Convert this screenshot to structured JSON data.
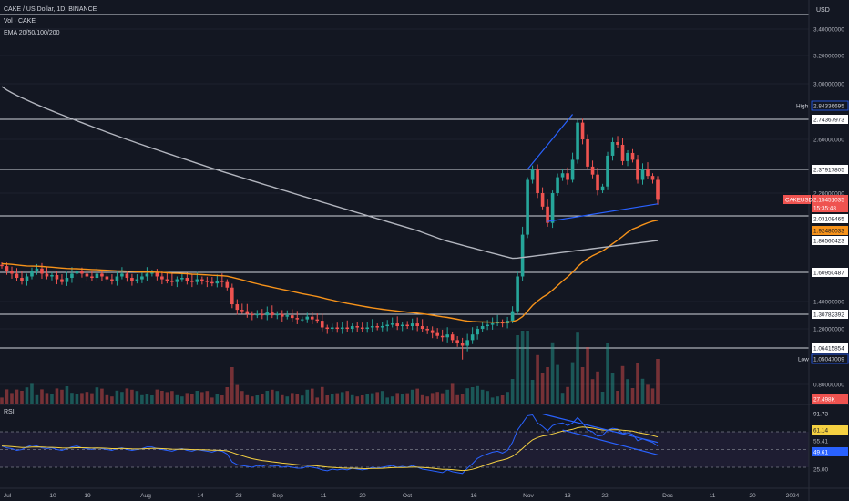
{
  "legend": {
    "symbol_line": "CAKE / US Dollar, 1D, BINANCE",
    "volume_line": "Vol · CAKE",
    "ema_line": "EMA 20/50/100/200"
  },
  "rsi_label": "RSI",
  "currency_label": "USD",
  "price_axis": {
    "ticks": [
      "3.40000000",
      "3.20000000",
      "3.00000000",
      "2.60000000",
      "2.20000000",
      "1.40000000",
      "1.20000000",
      "0.80000000"
    ]
  },
  "price_tags": {
    "high_label": "High",
    "high": "2.84336695",
    "low_label": "Low",
    "low": "1.05047009",
    "symbol": "CAKEUSD",
    "current": "2.15451035",
    "countdown": "15:35:48",
    "ema_orange": "1.92480033",
    "ema_gray": "1.86560423",
    "volume": "27.498K",
    "levels": [
      "2.74367973",
      "2.37917805",
      "2.03108465",
      "1.60950487",
      "1.30782392",
      "1.06415854"
    ]
  },
  "rsi_axis": {
    "ticks": [
      "91.73",
      "61.14",
      "55.41",
      "49.61",
      "25.00"
    ]
  },
  "x_axis": {
    "ticks": [
      "Jul",
      "10",
      "19",
      "Aug",
      "14",
      "23",
      "Sep",
      "11",
      "20",
      "Oct",
      "16",
      "Nov",
      "13",
      "22",
      "Dec",
      "11",
      "20",
      "2024"
    ]
  },
  "colors": {
    "background": "#131722",
    "up": "#26a69a",
    "down": "#ef5350",
    "ema_orange": "#f7931a",
    "ema_gray": "#b2b5be",
    "trend": "#2962ff",
    "rsi": "#2962ff",
    "rsi_ma": "#f5d142"
  },
  "chart_data": {
    "type": "candlestick",
    "title": "CAKE / US Dollar, 1D, BINANCE",
    "price_range": [
      0.8,
      3.4
    ],
    "rsi_range": [
      25,
      91.73
    ],
    "horizontal_levels": [
      2.74367973,
      2.37917805,
      2.03108465,
      1.60950487,
      1.30782392,
      1.06415854
    ],
    "high": 2.84336695,
    "low": 1.05047009,
    "last": 2.15451035,
    "ema_values_last": {
      "orange": 1.92480033,
      "gray": 1.86560423
    },
    "closes": [
      1.66,
      1.62,
      1.6,
      1.57,
      1.55,
      1.58,
      1.62,
      1.64,
      1.6,
      1.58,
      1.59,
      1.56,
      1.54,
      1.57,
      1.6,
      1.62,
      1.6,
      1.58,
      1.57,
      1.6,
      1.58,
      1.56,
      1.55,
      1.58,
      1.6,
      1.57,
      1.55,
      1.56,
      1.58,
      1.6,
      1.61,
      1.58,
      1.56,
      1.55,
      1.54,
      1.56,
      1.57,
      1.55,
      1.54,
      1.56,
      1.55,
      1.54,
      1.53,
      1.55,
      1.54,
      1.5,
      1.38,
      1.34,
      1.33,
      1.31,
      1.3,
      1.31,
      1.3,
      1.32,
      1.3,
      1.31,
      1.29,
      1.3,
      1.28,
      1.27,
      1.27,
      1.29,
      1.27,
      1.26,
      1.21,
      1.2,
      1.21,
      1.2,
      1.21,
      1.2,
      1.22,
      1.21,
      1.2,
      1.21,
      1.22,
      1.21,
      1.22,
      1.23,
      1.24,
      1.22,
      1.23,
      1.22,
      1.24,
      1.22,
      1.2,
      1.19,
      1.17,
      1.15,
      1.14,
      1.16,
      1.12,
      1.1,
      1.08,
      1.12,
      1.16,
      1.2,
      1.22,
      1.23,
      1.24,
      1.25,
      1.24,
      1.26,
      1.33,
      1.58,
      1.9,
      2.3,
      2.38,
      2.2,
      2.1,
      1.98,
      2.2,
      2.32,
      2.35,
      2.3,
      2.45,
      2.72,
      2.6,
      2.4,
      2.34,
      2.22,
      2.25,
      2.48,
      2.58,
      2.56,
      2.44,
      2.5,
      2.45,
      2.3,
      2.38,
      2.33,
      2.3,
      2.15
    ],
    "rsi": [
      54,
      52,
      51,
      49,
      50,
      53,
      55,
      54,
      52,
      51,
      52,
      50,
      49,
      51,
      53,
      54,
      52,
      51,
      50,
      52,
      51,
      50,
      49,
      51,
      52,
      50,
      49,
      50,
      51,
      53,
      53,
      51,
      50,
      49,
      48,
      50,
      51,
      49,
      48,
      50,
      49,
      48,
      47,
      49,
      48,
      45,
      36,
      33,
      32,
      31,
      30,
      32,
      31,
      33,
      31,
      32,
      30,
      31,
      30,
      29,
      29,
      31,
      30,
      29,
      27,
      26,
      28,
      27,
      28,
      27,
      29,
      28,
      27,
      28,
      30,
      29,
      30,
      31,
      32,
      30,
      31,
      30,
      32,
      30,
      28,
      27,
      26,
      25,
      24,
      27,
      25,
      24,
      23,
      29,
      34,
      40,
      43,
      45,
      47,
      48,
      46,
      49,
      58,
      72,
      80,
      88,
      89,
      80,
      76,
      71,
      77,
      79,
      80,
      77,
      80,
      86,
      80,
      72,
      70,
      65,
      66,
      72,
      74,
      73,
      68,
      69,
      67,
      60,
      62,
      60,
      58,
      54
    ]
  }
}
